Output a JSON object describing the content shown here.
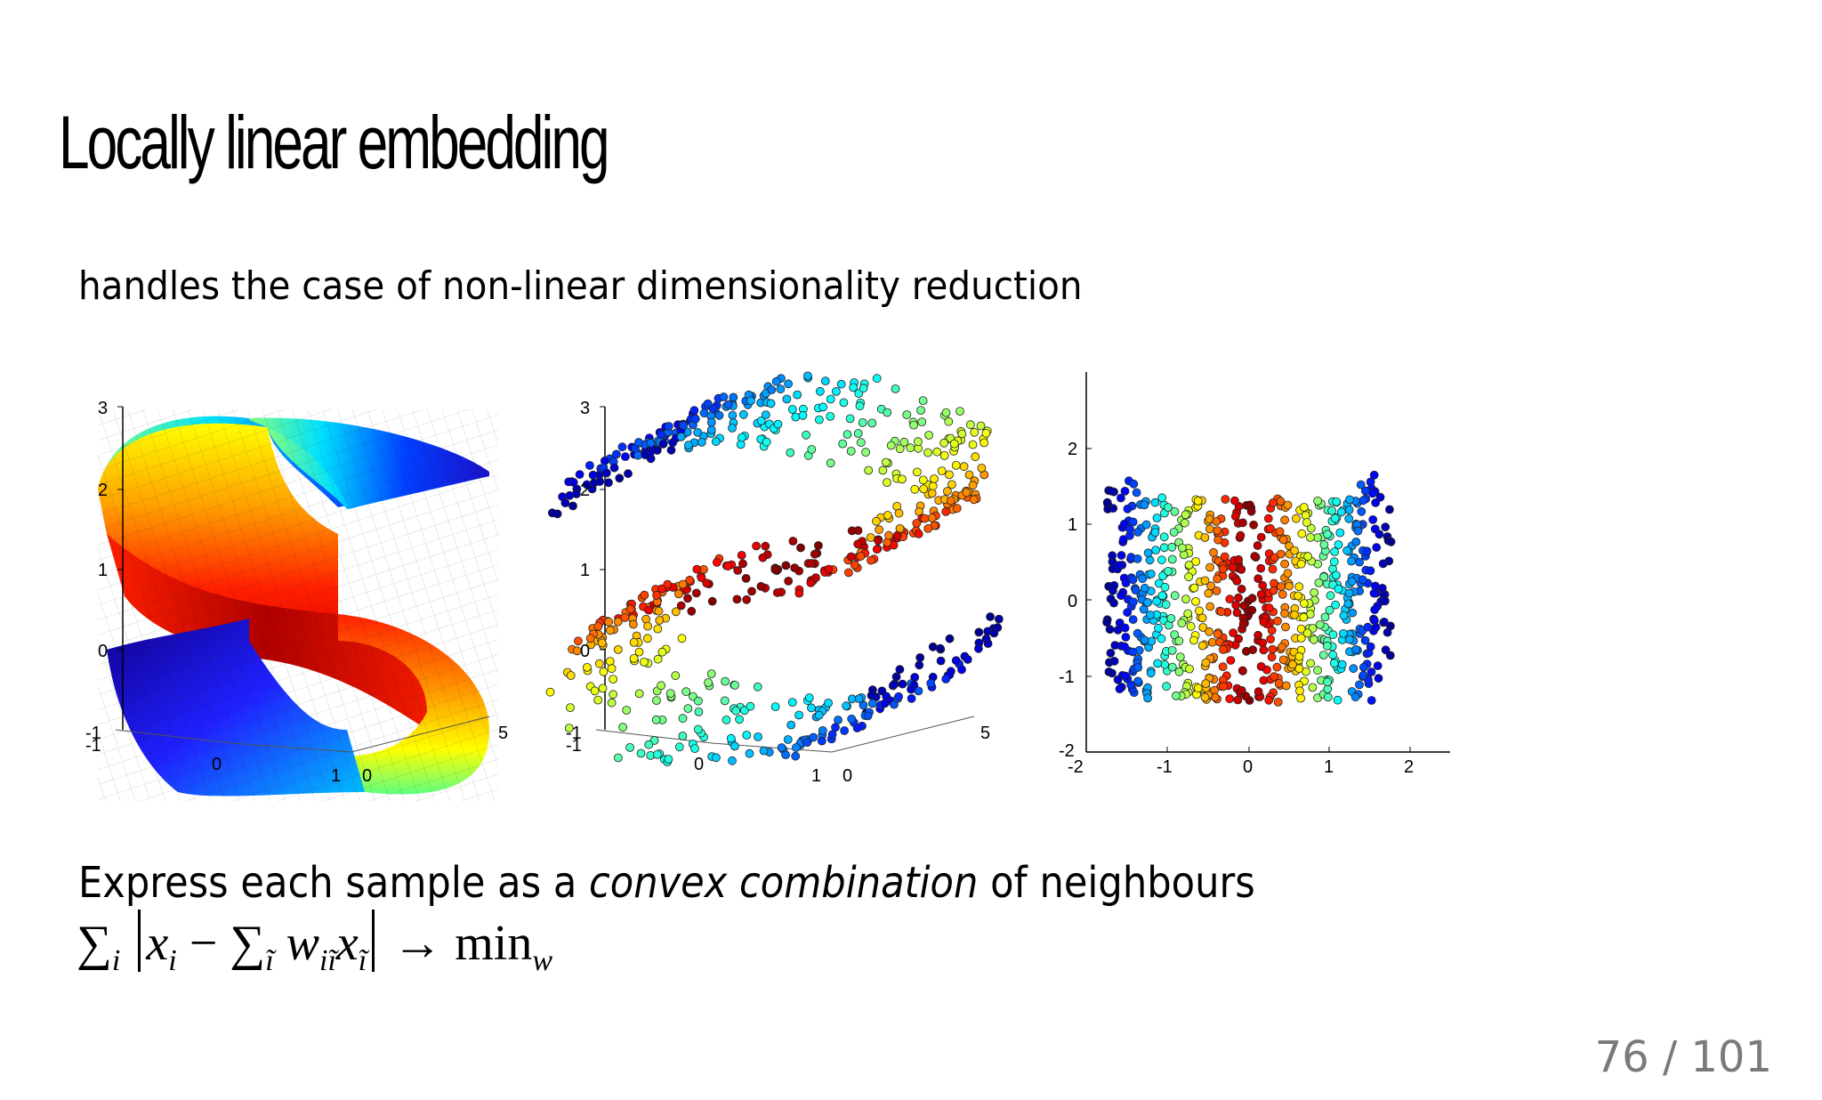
{
  "slide": {
    "title": "Locally linear embedding",
    "subtitle": "handles the case of non-linear dimensionality reduction",
    "body": {
      "prefix": "Express each sample as a ",
      "emphasis": "convex combination",
      "suffix": " of neighbours"
    },
    "formula": {
      "sum1": "∑",
      "sum1_sub": "i",
      "x": "x",
      "x_sub": "i",
      "minus": "−",
      "sum2": "∑",
      "sum2_sub": "ĩ",
      "w": "w",
      "w_sub": "iĩ",
      "x2": "x",
      "x2_sub": "ĩ",
      "arrow": "→",
      "min": "min",
      "min_sub": "w"
    },
    "page": {
      "current": "76",
      "separator": " / ",
      "total": "101"
    }
  },
  "colors": {
    "page_number": "#7a7a7a",
    "axis": "#000000",
    "colormap": [
      "#00008f",
      "#0000ff",
      "#0080ff",
      "#00ffff",
      "#80ff80",
      "#ffff00",
      "#ff8000",
      "#ff0000",
      "#800000"
    ]
  },
  "chart_data": [
    {
      "type": "surface",
      "title": "",
      "description": "3D S-curve manifold rendered as a jet-colormapped surface",
      "z_ticks": [
        "3",
        "2",
        "1",
        "0",
        "-1"
      ],
      "x_ticks": [
        "-1",
        "0",
        "1"
      ],
      "y_ticks": [
        "0",
        "5"
      ],
      "zlim": [
        -1,
        3
      ],
      "xlim": [
        -1,
        1
      ],
      "ylim": [
        0,
        5
      ],
      "colormap": "jet"
    },
    {
      "type": "scatter",
      "title": "",
      "description": "Random samples (~800) drawn from the 3D S-curve, colored by position along the manifold",
      "z_ticks": [
        "3",
        "2",
        "1",
        "0",
        "-1"
      ],
      "x_ticks": [
        "-1",
        "0",
        "1"
      ],
      "y_ticks": [
        "0",
        "5"
      ],
      "zlim": [
        -1,
        3
      ],
      "xlim": [
        -1,
        1
      ],
      "ylim": [
        0,
        5
      ],
      "colormap": "jet"
    },
    {
      "type": "scatter",
      "title": "",
      "description": "2D LLE embedding of the S-curve samples, colored with same jet colormap",
      "x_ticks": [
        "-2",
        "-1",
        "0",
        "1",
        "2"
      ],
      "y_ticks": [
        "2",
        "1",
        "0",
        "-1",
        "-2"
      ],
      "xlim": [
        -2,
        2.5
      ],
      "ylim": [
        -2,
        3
      ],
      "colormap": "jet"
    }
  ]
}
